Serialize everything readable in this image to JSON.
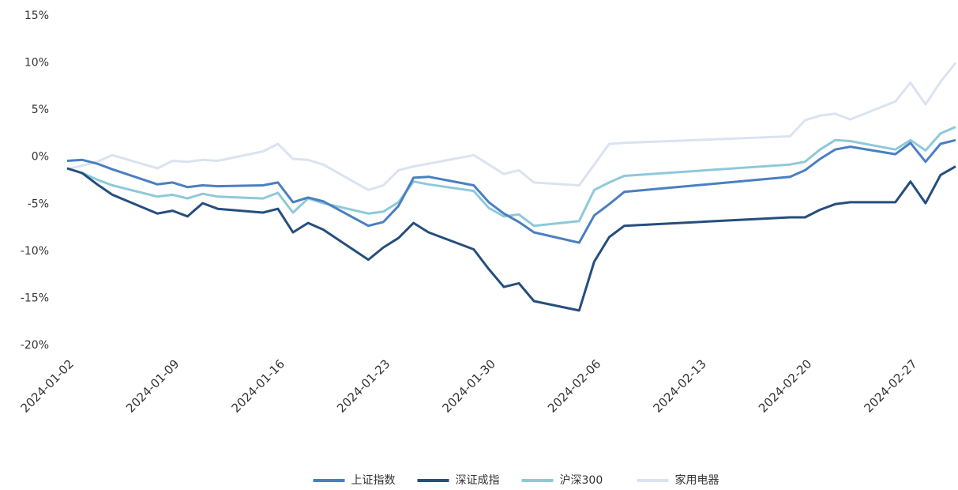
{
  "chart_data": {
    "type": "line",
    "x": [
      "2024-01-02",
      "2024-01-03",
      "2024-01-04",
      "2024-01-05",
      "2024-01-08",
      "2024-01-09",
      "2024-01-10",
      "2024-01-11",
      "2024-01-12",
      "2024-01-15",
      "2024-01-16",
      "2024-01-17",
      "2024-01-18",
      "2024-01-19",
      "2024-01-22",
      "2024-01-23",
      "2024-01-24",
      "2024-01-25",
      "2024-01-26",
      "2024-01-29",
      "2024-01-30",
      "2024-01-31",
      "2024-02-01",
      "2024-02-02",
      "2024-02-05",
      "2024-02-06",
      "2024-02-07",
      "2024-02-08",
      "2024-02-19",
      "2024-02-20",
      "2024-02-21",
      "2024-02-22",
      "2024-02-23",
      "2024-02-26",
      "2024-02-27",
      "2024-02-28",
      "2024-02-29",
      "2024-03-01"
    ],
    "series": [
      {
        "name": "上证指数",
        "color": "#4a7fc1",
        "values": [
          -0.4,
          -0.3,
          -0.7,
          -1.3,
          -2.9,
          -2.7,
          -3.2,
          -3.0,
          -3.1,
          -3.0,
          -2.7,
          -4.8,
          -4.3,
          -4.7,
          -7.3,
          -6.9,
          -5.2,
          -2.2,
          -2.1,
          -3.0,
          -4.8,
          -6.0,
          -6.9,
          -8.0,
          -9.1,
          -6.2,
          -5.0,
          -3.7,
          -2.1,
          -1.4,
          -0.2,
          0.8,
          1.1,
          0.3,
          1.5,
          -0.5,
          1.4,
          1.8
        ]
      },
      {
        "name": "深证成指",
        "color": "#254e7e",
        "values": [
          -1.2,
          -1.7,
          -2.9,
          -4.0,
          -6.0,
          -5.7,
          -6.3,
          -4.9,
          -5.5,
          -5.9,
          -5.5,
          -8.0,
          -7.0,
          -7.7,
          -10.9,
          -9.6,
          -8.6,
          -7.0,
          -8.0,
          -9.8,
          -11.9,
          -13.8,
          -13.4,
          -15.3,
          -16.3,
          -11.1,
          -8.5,
          -7.3,
          -6.4,
          -6.4,
          -5.6,
          -5.0,
          -4.8,
          -4.8,
          -2.6,
          -4.9,
          -1.9,
          -1.0
        ]
      },
      {
        "name": "沪深300",
        "color": "#8ec9d9",
        "values": [
          -1.2,
          -1.7,
          -2.4,
          -3.0,
          -4.2,
          -4.0,
          -4.4,
          -3.9,
          -4.2,
          -4.4,
          -3.8,
          -5.9,
          -4.4,
          -4.9,
          -6.0,
          -5.8,
          -4.8,
          -2.6,
          -2.9,
          -3.6,
          -5.4,
          -6.3,
          -6.1,
          -7.3,
          -6.8,
          -3.5,
          -2.7,
          -2.0,
          -0.8,
          -0.5,
          0.8,
          1.8,
          1.7,
          0.8,
          1.8,
          0.7,
          2.5,
          3.2
        ]
      },
      {
        "name": "家用电器",
        "color": "#dbe3f1",
        "values": [
          -1.3,
          -0.9,
          -0.5,
          0.2,
          -1.2,
          -0.4,
          -0.5,
          -0.3,
          -0.4,
          0.6,
          1.4,
          -0.2,
          -0.3,
          -0.8,
          -3.5,
          -3.0,
          -1.4,
          -1.0,
          -0.7,
          0.2,
          -0.8,
          -1.8,
          -1.4,
          -2.7,
          -3.0,
          -0.8,
          1.4,
          1.5,
          2.2,
          3.9,
          4.4,
          4.6,
          4.0,
          5.9,
          7.9,
          5.6,
          8.0,
          10.0
        ]
      }
    ],
    "xlim": [
      "2024-01-02",
      "2024-03-01"
    ],
    "xticks": [
      "2024-01-02",
      "2024-01-09",
      "2024-01-16",
      "2024-01-23",
      "2024-01-30",
      "2024-02-06",
      "2024-02-13",
      "2024-02-20",
      "2024-02-27"
    ],
    "ylim": [
      -20,
      15
    ],
    "yticks": [
      {
        "value": -20,
        "label": "-20%"
      },
      {
        "value": -15,
        "label": "-15%"
      },
      {
        "value": -10,
        "label": "-10%"
      },
      {
        "value": -5,
        "label": "-5%"
      },
      {
        "value": 0,
        "label": "0%"
      },
      {
        "value": 5,
        "label": "5%"
      },
      {
        "value": 10,
        "label": "10%"
      },
      {
        "value": 15,
        "label": "15%"
      }
    ],
    "legend": "bottom"
  }
}
